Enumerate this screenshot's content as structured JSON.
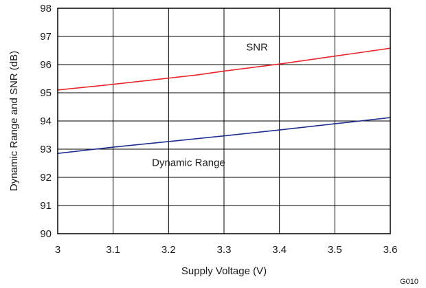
{
  "chart_data": {
    "type": "line",
    "title": "",
    "xlabel": "Supply Voltage (V)",
    "ylabel": "Dynamic Range and SNR (dB)",
    "xlim": [
      3.0,
      3.6
    ],
    "ylim": [
      90,
      98
    ],
    "xticks": [
      3.0,
      3.1,
      3.2,
      3.3,
      3.4,
      3.5,
      3.6
    ],
    "xtick_labels": [
      "3",
      "3.1",
      "3.2",
      "3.3",
      "3.4",
      "3.5",
      "3.6"
    ],
    "yticks": [
      90,
      91,
      92,
      93,
      94,
      95,
      96,
      97,
      98
    ],
    "ytick_labels": [
      "90",
      "91",
      "92",
      "93",
      "94",
      "95",
      "96",
      "97",
      "98"
    ],
    "grid": true,
    "series": [
      {
        "name": "SNR",
        "color": "#e8262b",
        "x": [
          3.0,
          3.1,
          3.2,
          3.25,
          3.3,
          3.4,
          3.5,
          3.6
        ],
        "y": [
          95.1,
          95.3,
          95.52,
          95.63,
          95.77,
          96.02,
          96.3,
          96.58
        ]
      },
      {
        "name": "Dynamic Range",
        "color": "#1f2f8f",
        "x": [
          3.0,
          3.1,
          3.2,
          3.3,
          3.4,
          3.5,
          3.6
        ],
        "y": [
          92.85,
          93.07,
          93.27,
          93.47,
          93.68,
          93.9,
          94.12
        ]
      }
    ],
    "annotations": [
      {
        "text": "SNR",
        "x": 3.34,
        "y": 96.5,
        "series": 0
      },
      {
        "text": "Dynamic Range",
        "x": 3.17,
        "y": 92.4,
        "series": 1
      }
    ],
    "figure_code": "G010"
  }
}
